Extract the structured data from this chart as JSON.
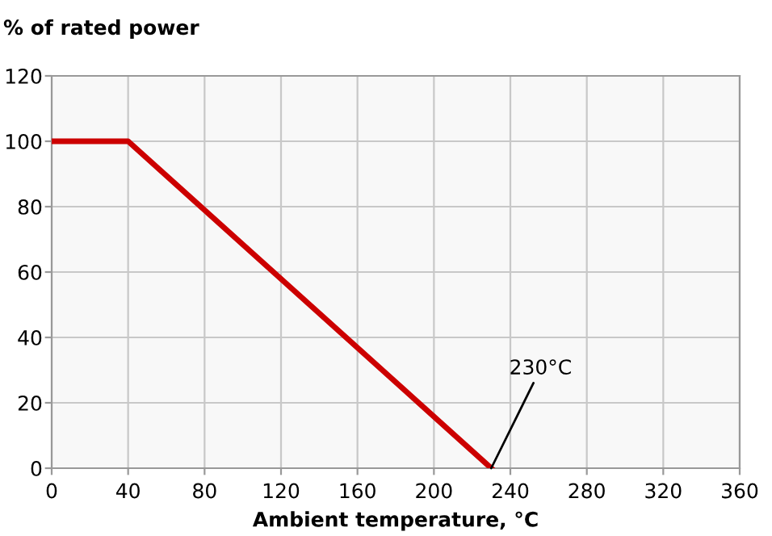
{
  "chart_data": {
    "type": "line",
    "ylabel": "% of rated power",
    "xlabel": "Ambient temperature, °C",
    "x": [
      0,
      40,
      230
    ],
    "values": [
      100,
      100,
      0
    ],
    "color": "#cc0000",
    "xlim": [
      0,
      360
    ],
    "xticks": [
      0,
      40,
      80,
      120,
      160,
      200,
      240,
      280,
      320,
      360
    ],
    "ylim": [
      0,
      120
    ],
    "yticks": [
      0,
      20,
      40,
      60,
      80,
      100,
      120
    ],
    "grid": true,
    "marker": "none",
    "line_style": "solid",
    "annotations": [
      {
        "text": "230°C",
        "x": 230,
        "y": 0
      }
    ]
  }
}
